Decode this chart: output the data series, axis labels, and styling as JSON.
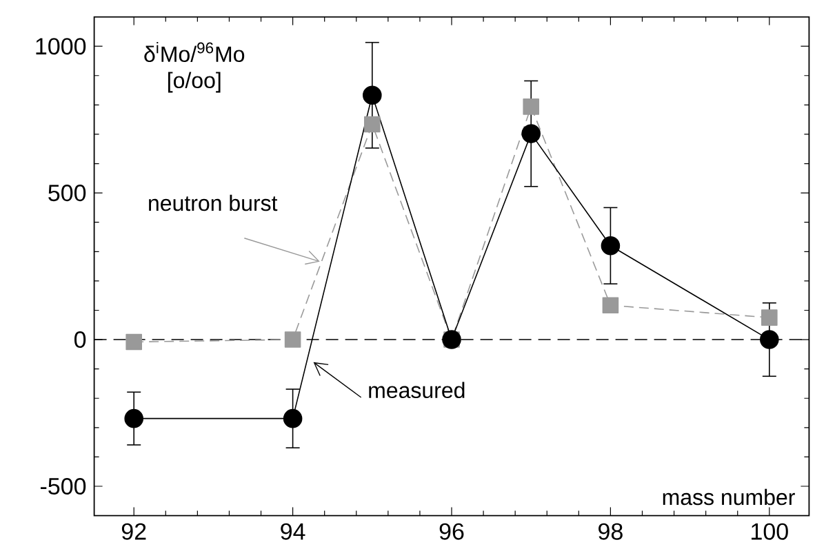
{
  "chart_data": {
    "type": "line",
    "ylabel": "δ$^{i}$Mo/$^{96}$Mo [o/oo]",
    "xlabel": "mass number",
    "x": [
      92,
      94,
      95,
      96,
      97,
      98,
      100
    ],
    "series": [
      {
        "color": "#000000",
        "marker": "circle",
        "line_style": "solid",
        "values": [
          -269,
          -269,
          833,
          0,
          702,
          320,
          0
        ],
        "errors": [
          90,
          100,
          180,
          null,
          180,
          130,
          125
        ]
      },
      {
        "color": "#999999",
        "marker": "square",
        "line_style": "dashed",
        "values": [
          -8,
          0,
          734,
          0,
          794,
          117,
          75
        ]
      }
    ],
    "annotations": [
      {
        "text": "neutron burst",
        "x": 94.34,
        "y": 266
      },
      {
        "text": "measured",
        "x": 94.26,
        "y": -77
      }
    ],
    "ref_lines": [
      {
        "axis": "y",
        "value": 0,
        "color": "#000000",
        "line_style": "dashed"
      }
    ],
    "xlim": [
      91.5,
      100.5
    ],
    "ylim": [
      -600,
      1100
    ],
    "xticks": [
      92,
      94,
      96,
      98,
      100
    ],
    "yticks": [
      -500,
      0,
      500,
      1000
    ],
    "grid": false
  }
}
